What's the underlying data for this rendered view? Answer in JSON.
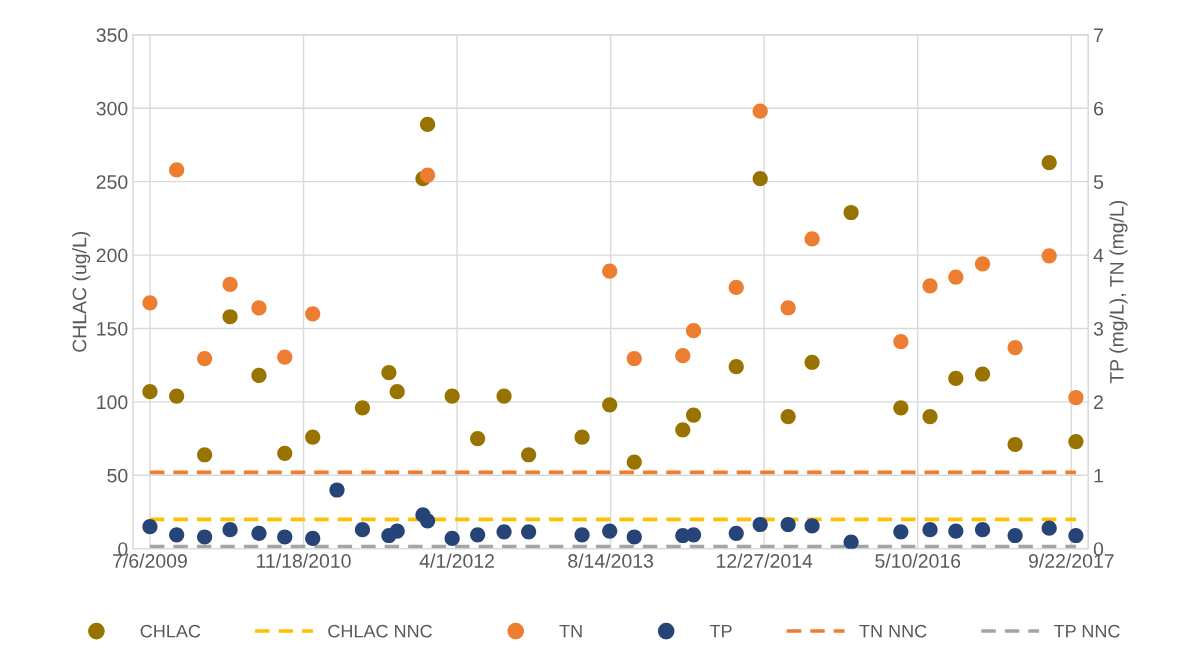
{
  "chart_data": {
    "type": "scatter",
    "ylabel": "CHLAC (ug/L)",
    "y2label": "TP (mg/L), TN (mg/L)",
    "xlim": [
      "2009-05-12",
      "2017-11-16"
    ],
    "xticks": [
      {
        "value": "2009-07-06",
        "label": "7/6/2009"
      },
      {
        "value": "2010-11-18",
        "label": "11/18/2010"
      },
      {
        "value": "2012-04-01",
        "label": "4/1/2012"
      },
      {
        "value": "2013-08-14",
        "label": "8/14/2013"
      },
      {
        "value": "2014-12-27",
        "label": "12/27/2014"
      },
      {
        "value": "2016-05-10",
        "label": "5/10/2016"
      },
      {
        "value": "2017-09-22",
        "label": "9/22/2017"
      }
    ],
    "ylim": [
      0,
      350
    ],
    "yticks": [
      0,
      50,
      100,
      150,
      200,
      250,
      300,
      350
    ],
    "y2lim": [
      0,
      7
    ],
    "y2ticks": [
      0,
      1,
      2,
      3,
      4,
      5,
      6,
      7
    ],
    "grid": true,
    "legend": "bottom",
    "series": [
      {
        "name": "CHLAC",
        "marker": "circle",
        "color": "#997300",
        "x": [
          "2009-07-06",
          "2009-10-01",
          "2009-12-31",
          "2010-03-24",
          "2010-06-26",
          "2010-09-18",
          "2010-12-18",
          "2011-05-29",
          "2011-08-23",
          "2011-09-19",
          "2011-12-12",
          "2011-12-27",
          "2012-03-16",
          "2012-06-07",
          "2012-09-01",
          "2012-11-20",
          "2013-05-13",
          "2013-08-11",
          "2013-10-30",
          "2014-04-06",
          "2014-05-11",
          "2014-09-27",
          "2014-12-14",
          "2015-03-15",
          "2015-06-01",
          "2015-10-06",
          "2016-03-16",
          "2016-06-19",
          "2016-09-11",
          "2016-12-07",
          "2017-03-23",
          "2017-07-12",
          "2017-10-07"
        ],
        "values": [
          107,
          104,
          64,
          158,
          118,
          65,
          76,
          96,
          120,
          107,
          252,
          289,
          104,
          75,
          104,
          64,
          76,
          98,
          59,
          81,
          91,
          124,
          252,
          90,
          127,
          229,
          96,
          90,
          116,
          119,
          71,
          263,
          73
        ]
      },
      {
        "name": "CHLAC NNC",
        "type": "line",
        "line_style": "dashed",
        "color": "#ffc000",
        "x": [
          "2009-07-06",
          "2017-10-07"
        ],
        "values": [
          20,
          20
        ]
      },
      {
        "name": "TN",
        "marker": "circle",
        "axis": "y2",
        "color": "#ed7d31",
        "x": [
          "2009-07-06",
          "2009-10-01",
          "2009-12-31",
          "2010-03-24",
          "2010-06-26",
          "2010-09-18",
          "2010-12-18",
          "2011-12-27",
          "2013-08-11",
          "2013-10-30",
          "2014-04-06",
          "2014-05-11",
          "2014-09-27",
          "2014-12-14",
          "2015-03-15",
          "2015-06-01",
          "2016-03-16",
          "2016-06-19",
          "2016-09-11",
          "2016-12-07",
          "2017-03-23",
          "2017-07-12",
          "2017-10-07"
        ],
        "values": [
          3.35,
          5.16,
          2.59,
          3.6,
          3.28,
          2.61,
          3.2,
          5.09,
          3.78,
          2.59,
          2.63,
          2.97,
          3.56,
          5.96,
          3.28,
          4.22,
          2.82,
          3.58,
          3.7,
          3.88,
          2.74,
          3.99,
          2.06
        ]
      },
      {
        "name": "TP",
        "marker": "circle",
        "axis": "y2",
        "color": "#264478",
        "x": [
          "2009-07-06",
          "2009-10-01",
          "2009-12-31",
          "2010-03-24",
          "2010-06-26",
          "2010-09-18",
          "2010-12-18",
          "2011-03-07",
          "2011-05-29",
          "2011-08-23",
          "2011-09-19",
          "2011-12-12",
          "2011-12-27",
          "2012-03-16",
          "2012-06-07",
          "2012-09-01",
          "2012-11-20",
          "2013-05-13",
          "2013-08-11",
          "2013-10-30",
          "2014-04-06",
          "2014-05-11",
          "2014-09-27",
          "2014-12-14",
          "2015-03-15",
          "2015-06-01",
          "2015-10-06",
          "2016-03-16",
          "2016-06-19",
          "2016-09-11",
          "2016-12-07",
          "2017-03-23",
          "2017-07-12",
          "2017-10-07"
        ],
        "values": [
          0.3,
          0.19,
          0.16,
          0.26,
          0.21,
          0.16,
          0.14,
          0.8,
          0.26,
          0.18,
          0.24,
          0.46,
          0.38,
          0.14,
          0.19,
          0.23,
          0.23,
          0.19,
          0.24,
          0.16,
          0.18,
          0.19,
          0.21,
          0.33,
          0.33,
          0.31,
          0.09,
          0.23,
          0.26,
          0.24,
          0.26,
          0.18,
          0.28,
          0.18
        ]
      },
      {
        "name": "TN NNC",
        "type": "line",
        "line_style": "dashed",
        "axis": "y2",
        "color": "#ed7d31",
        "x": [
          "2009-07-06",
          "2017-10-07"
        ],
        "values": [
          1.04,
          1.04
        ]
      },
      {
        "name": "TP NNC",
        "type": "line",
        "line_style": "dashed",
        "axis": "y2",
        "color": "#a5a5a5",
        "x": [
          "2009-07-06",
          "2017-10-07"
        ],
        "values": [
          0.03,
          0.03
        ]
      }
    ]
  }
}
